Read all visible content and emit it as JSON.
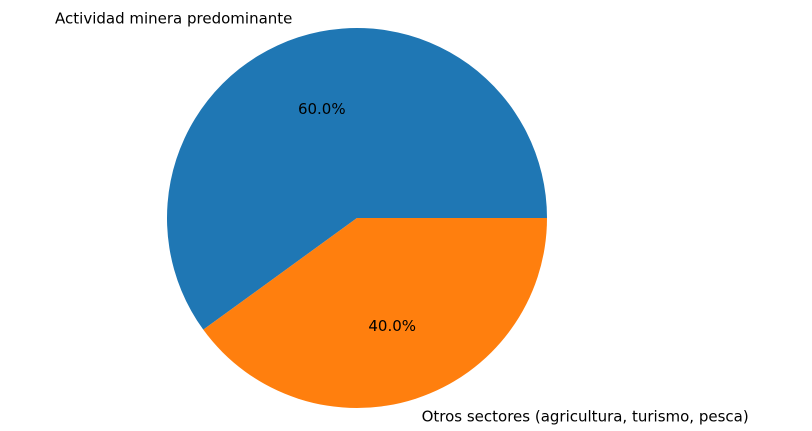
{
  "chart_data": {
    "type": "pie",
    "categories": [
      "Actividad minera predominante",
      "Otros sectores (agricultura, turismo, pesca)"
    ],
    "values": [
      60,
      40
    ],
    "value_labels": [
      "60.0%",
      "40.0%"
    ],
    "colors": [
      "#1f77b4",
      "#ff7f0e"
    ]
  }
}
